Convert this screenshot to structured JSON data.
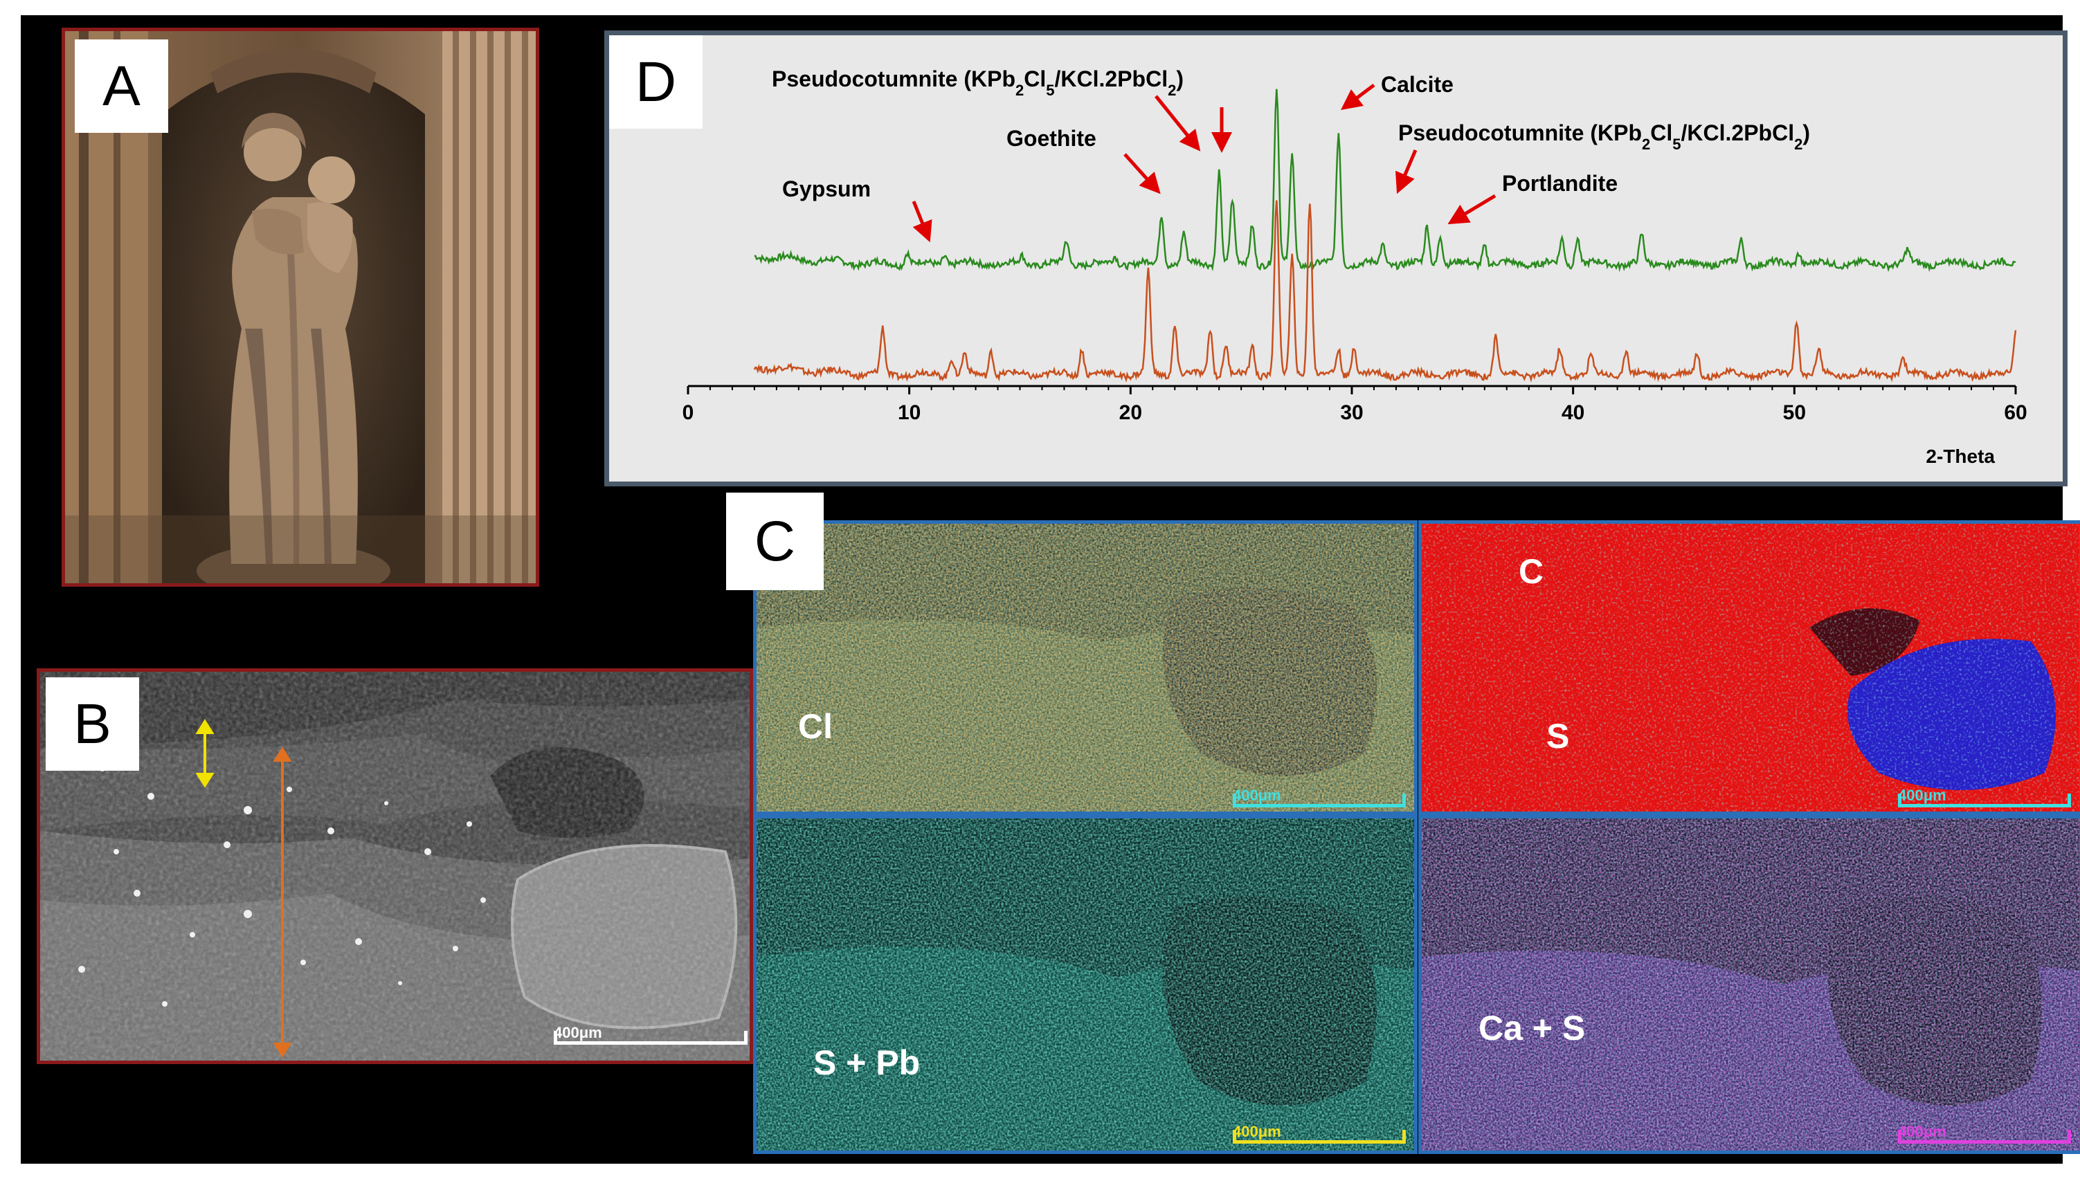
{
  "panels": {
    "a": {
      "letter": "A"
    },
    "b": {
      "letter": "B",
      "scalebar_label": "400μm"
    },
    "c": {
      "letter": "C",
      "maps": [
        {
          "label": "Cl",
          "scalebar_label": "400μm"
        },
        {
          "label_c": "C",
          "label_s": "S",
          "scalebar_label": "400μm"
        },
        {
          "label": "S + Pb",
          "scalebar_label": "400μm"
        },
        {
          "label": "Ca + S",
          "scalebar_label": "400μm"
        }
      ]
    },
    "d": {
      "letter": "D"
    }
  },
  "chart_data": {
    "type": "line",
    "title": "",
    "xlabel": "2-Theta",
    "ylabel": "",
    "xlim": [
      0,
      60
    ],
    "xticks": [
      0,
      10,
      20,
      30,
      40,
      50,
      60
    ],
    "grid": false,
    "series": [
      {
        "color": "#2a8a1e",
        "baseline": 0.36,
        "peaks": [
          [
            9.9,
            0.1
          ],
          [
            11.6,
            0.08
          ],
          [
            15.1,
            0.06
          ],
          [
            17.1,
            0.18
          ],
          [
            19.3,
            0.06
          ],
          [
            21.4,
            0.4
          ],
          [
            22.4,
            0.25
          ],
          [
            24.0,
            0.75
          ],
          [
            24.6,
            0.5
          ],
          [
            25.5,
            0.32
          ],
          [
            26.6,
            1.4
          ],
          [
            27.3,
            0.9
          ],
          [
            29.4,
            1.05
          ],
          [
            31.4,
            0.15
          ],
          [
            33.4,
            0.3
          ],
          [
            34.0,
            0.24
          ],
          [
            36.0,
            0.16
          ],
          [
            39.5,
            0.2
          ],
          [
            40.2,
            0.22
          ],
          [
            43.1,
            0.22
          ],
          [
            47.6,
            0.19
          ],
          [
            50.2,
            0.1
          ],
          [
            55.1,
            0.1
          ]
        ]
      },
      {
        "color": "#c8501e",
        "baseline": 0.04,
        "peaks": [
          [
            8.8,
            0.36
          ],
          [
            11.9,
            0.14
          ],
          [
            12.5,
            0.16
          ],
          [
            13.7,
            0.2
          ],
          [
            17.8,
            0.22
          ],
          [
            20.8,
            0.82
          ],
          [
            22.0,
            0.4
          ],
          [
            23.6,
            0.38
          ],
          [
            24.3,
            0.24
          ],
          [
            25.5,
            0.25
          ],
          [
            26.6,
            1.4
          ],
          [
            27.3,
            0.95
          ],
          [
            28.1,
            1.4
          ],
          [
            29.4,
            0.2
          ],
          [
            30.1,
            0.24
          ],
          [
            36.5,
            0.3
          ],
          [
            39.4,
            0.2
          ],
          [
            40.8,
            0.15
          ],
          [
            42.4,
            0.21
          ],
          [
            45.6,
            0.17
          ],
          [
            50.1,
            0.45
          ],
          [
            51.1,
            0.2
          ],
          [
            54.9,
            0.13
          ],
          [
            60.0,
            0.35
          ]
        ]
      }
    ],
    "annotations": [
      {
        "id": "gypsum",
        "html": "Gypsum"
      },
      {
        "id": "goethite",
        "html": "Goethite"
      },
      {
        "id": "pseudo1",
        "html": "Pseudocotumnite (KPb<tspan baseline-shift=\"sub\" font-size=\"22\">2</tspan>Cl<tspan baseline-shift=\"sub\" font-size=\"22\">5</tspan>/KCl.2PbCl<tspan baseline-shift=\"sub\" font-size=\"22\">2</tspan>)"
      },
      {
        "id": "calcite",
        "html": "Calcite"
      },
      {
        "id": "pseudo2",
        "html": "Pseudocotumnite (KPb<tspan baseline-shift=\"sub\" font-size=\"22\">2</tspan>Cl<tspan baseline-shift=\"sub\" font-size=\"22\">5</tspan>/KCl.2PbCl<tspan baseline-shift=\"sub\" font-size=\"22\">2</tspan>)"
      },
      {
        "id": "portlandite",
        "html": "Portlandite"
      }
    ],
    "annotation_text": {
      "gypsum": "Gypsum",
      "goethite": "Goethite",
      "pseudo1": "Pseudocotumnite (KPb2Cl5/KCl.2PbCl2)",
      "calcite": "Calcite",
      "pseudo2": "Pseudocotumnite (KPb2Cl5/KCl.2PbCl2)",
      "portlandite": "Portlandite"
    }
  },
  "colors": {
    "panel_border_red": "#8b1a1a",
    "panel_border_blue": "#2a6fb8",
    "chart_frame": "#4a5a6a",
    "chart_bg": "#e8e8e8",
    "arrow_red": "#e00000"
  }
}
